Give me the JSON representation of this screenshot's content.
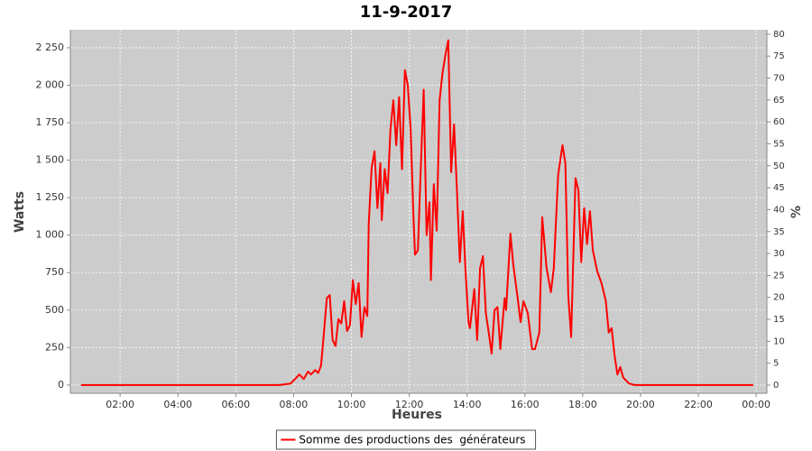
{
  "chart_data": {
    "type": "line",
    "title": "11-9-2017",
    "x_label": "Heures",
    "y_label": "Watts",
    "y2_label": "%",
    "background": "#cccccc",
    "grid": true,
    "legend": "bottom",
    "xlim": [
      0.28,
      24.37
    ],
    "xticks": [
      {
        "value": 2,
        "label": "02:00"
      },
      {
        "value": 4,
        "label": "04:00"
      },
      {
        "value": 6,
        "label": "06:00"
      },
      {
        "value": 8,
        "label": "08:00"
      },
      {
        "value": 10,
        "label": "10:00"
      },
      {
        "value": 12,
        "label": "12:00"
      },
      {
        "value": 14,
        "label": "14:00"
      },
      {
        "value": 16,
        "label": "16:00"
      },
      {
        "value": 18,
        "label": "18:00"
      },
      {
        "value": 20,
        "label": "20:00"
      },
      {
        "value": 22,
        "label": "22:00"
      },
      {
        "value": 24,
        "label": "00:00"
      }
    ],
    "ylim": [
      -55,
      2370
    ],
    "yticks": [
      0,
      250,
      500,
      750,
      {
        "value": 1000,
        "label": "1 000"
      },
      {
        "value": 1250,
        "label": "1 250"
      },
      {
        "value": 1500,
        "label": "1 500"
      },
      {
        "value": 1750,
        "label": "1 750"
      },
      {
        "value": 2000,
        "label": "2 000"
      },
      {
        "value": 2250,
        "label": "2 250"
      }
    ],
    "y2lim": [
      -1.85,
      81
    ],
    "y2ticks": [
      0,
      5,
      10,
      15,
      20,
      25,
      30,
      35,
      40,
      45,
      50,
      55,
      60,
      65,
      70,
      75,
      80
    ],
    "x": [
      0.65,
      4,
      7.5,
      7.9,
      8.1,
      8.2,
      8.35,
      8.5,
      8.6,
      8.75,
      8.85,
      8.95,
      9.05,
      9.15,
      9.25,
      9.35,
      9.45,
      9.55,
      9.65,
      9.75,
      9.85,
      9.95,
      10.05,
      10.15,
      10.25,
      10.35,
      10.45,
      10.55,
      10.6,
      10.7,
      10.8,
      10.9,
      11.0,
      11.05,
      11.15,
      11.25,
      11.35,
      11.45,
      11.55,
      11.65,
      11.75,
      11.85,
      11.95,
      12.05,
      12.15,
      12.2,
      12.3,
      12.4,
      12.5,
      12.6,
      12.7,
      12.75,
      12.85,
      12.95,
      13.05,
      13.15,
      13.25,
      13.35,
      13.45,
      13.55,
      13.65,
      13.75,
      13.85,
      13.95,
      14.05,
      14.1,
      14.25,
      14.35,
      14.45,
      14.55,
      14.65,
      14.75,
      14.85,
      14.95,
      15.05,
      15.15,
      15.3,
      15.35,
      15.5,
      15.6,
      15.75,
      15.85,
      15.95,
      16.1,
      16.25,
      16.35,
      16.5,
      16.6,
      16.75,
      16.9,
      17.0,
      17.15,
      17.3,
      17.4,
      17.5,
      17.6,
      17.75,
      17.85,
      17.95,
      18.05,
      18.15,
      18.25,
      18.35,
      18.5,
      18.65,
      18.8,
      18.9,
      19.0,
      19.1,
      19.2,
      19.3,
      19.4,
      19.6,
      19.8,
      23.9
    ],
    "series": [
      {
        "name": "Somme des productions des  générateurs",
        "color": "#ff0000",
        "values": [
          0,
          0,
          0,
          10,
          50,
          70,
          40,
          90,
          70,
          100,
          80,
          130,
          350,
          580,
          600,
          300,
          260,
          440,
          410,
          560,
          360,
          400,
          700,
          540,
          680,
          320,
          520,
          460,
          1080,
          1450,
          1560,
          1180,
          1480,
          1100,
          1440,
          1280,
          1700,
          1900,
          1600,
          1920,
          1440,
          2100,
          2000,
          1700,
          1100,
          870,
          900,
          1450,
          1970,
          1000,
          1220,
          700,
          1340,
          1030,
          1900,
          2080,
          2200,
          2300,
          1420,
          1740,
          1300,
          820,
          1160,
          750,
          420,
          380,
          640,
          300,
          780,
          860,
          480,
          350,
          210,
          500,
          520,
          240,
          580,
          500,
          1010,
          800,
          580,
          420,
          560,
          480,
          240,
          240,
          350,
          1120,
          780,
          620,
          780,
          1400,
          1600,
          1480,
          600,
          320,
          1380,
          1300,
          820,
          1180,
          940,
          1160,
          900,
          760,
          680,
          560,
          350,
          380,
          200,
          70,
          120,
          50,
          10,
          0,
          0
        ]
      }
    ]
  }
}
